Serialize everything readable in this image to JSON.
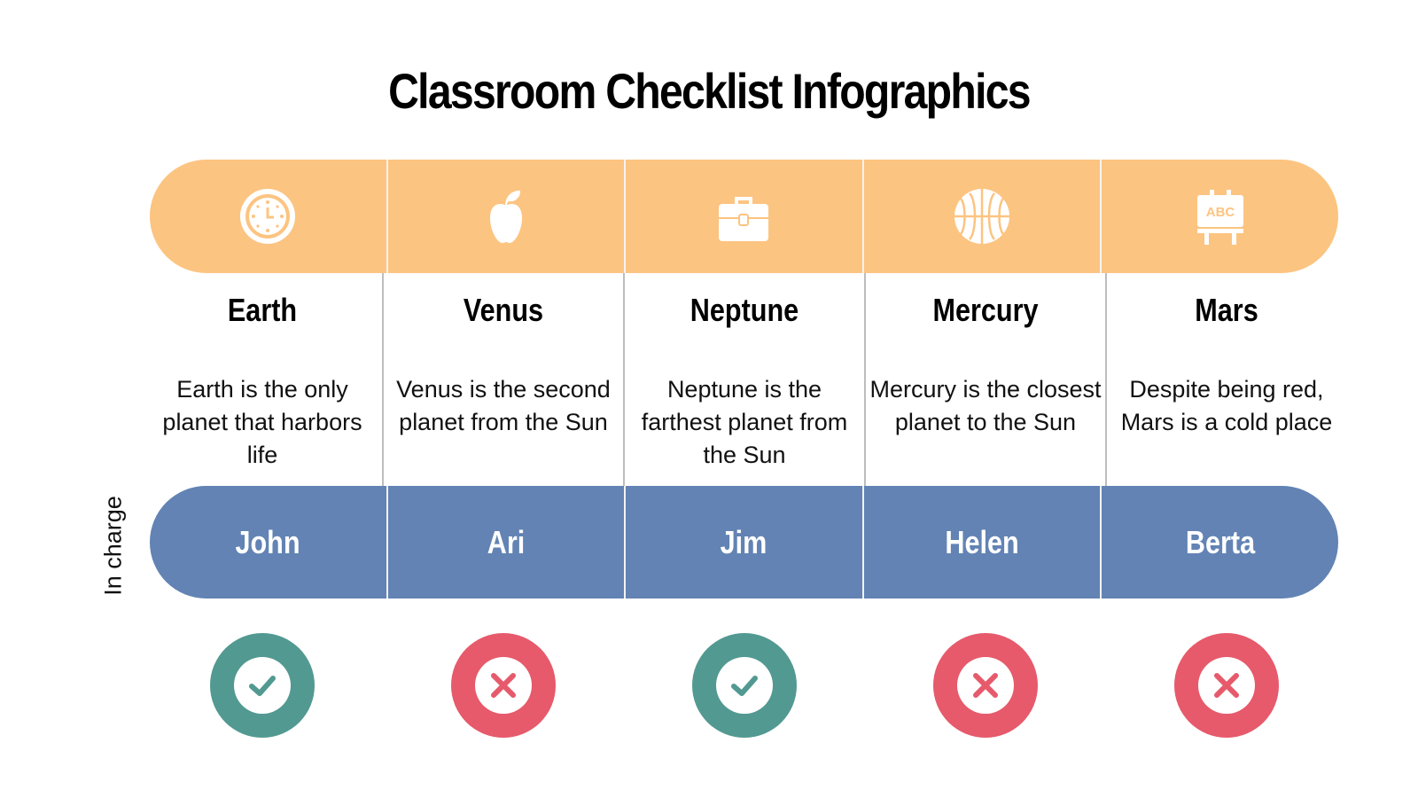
{
  "title": "Classroom Checklist Infographics",
  "side_label": "In charge",
  "colors": {
    "top_band": "#fcc481",
    "person_band": "#6283b4",
    "done": "#529991",
    "not_done": "#e65a6b"
  },
  "columns": [
    {
      "icon": "clock-icon",
      "name": "Earth",
      "description": "Earth is the only planet that harbors life",
      "person": "John",
      "status": "done"
    },
    {
      "icon": "apple-icon",
      "name": "Venus",
      "description": "Venus is the second planet from the Sun",
      "person": "Ari",
      "status": "not-done"
    },
    {
      "icon": "briefcase-icon",
      "name": "Neptune",
      "description": "Neptune is the farthest planet from the Sun",
      "person": "Jim",
      "status": "done"
    },
    {
      "icon": "basketball-icon",
      "name": "Mercury",
      "description": "Mercury is the closest planet to the Sun",
      "person": "Helen",
      "status": "not-done"
    },
    {
      "icon": "abc-board-icon",
      "name": "Mars",
      "description": "Despite being red, Mars is a cold place",
      "person": "Berta",
      "status": "not-done"
    }
  ]
}
